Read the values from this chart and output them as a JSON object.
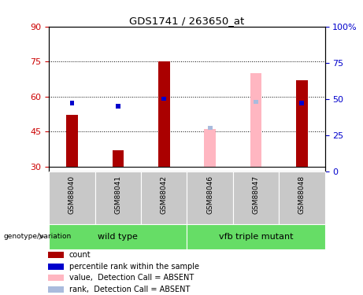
{
  "title": "GDS1741 / 263650_at",
  "samples": [
    "GSM88040",
    "GSM88041",
    "GSM88042",
    "GSM88046",
    "GSM88047",
    "GSM88048"
  ],
  "ylim_left": [
    28,
    90
  ],
  "ylim_right": [
    0,
    100
  ],
  "yticks_left": [
    30,
    45,
    60,
    75,
    90
  ],
  "yticks_right": [
    0,
    25,
    50,
    75,
    100
  ],
  "ytick_labels_right": [
    "0",
    "25",
    "50",
    "75",
    "100%"
  ],
  "bar_bottom": 30,
  "bar_data": [
    {
      "sample": "GSM88040",
      "absent": false,
      "value": 52,
      "rank_pct": 47
    },
    {
      "sample": "GSM88041",
      "absent": false,
      "value": 37,
      "rank_pct": 45
    },
    {
      "sample": "GSM88042",
      "absent": false,
      "value": 75,
      "rank_pct": 50
    },
    {
      "sample": "GSM88046",
      "absent": true,
      "value": 46,
      "rank_pct": 30
    },
    {
      "sample": "GSM88047",
      "absent": true,
      "value": 70,
      "rank_pct": 48
    },
    {
      "sample": "GSM88048",
      "absent": false,
      "value": 67,
      "rank_pct": 47
    }
  ],
  "colors": {
    "bar_present": "#AA0000",
    "bar_absent": "#FFB6C1",
    "rank_present": "#0000CC",
    "rank_absent": "#AABBDD",
    "left_axis": "#CC0000",
    "right_axis": "#0000CC",
    "sample_bg": "#C8C8C8",
    "group_bg": "#66DD66"
  },
  "bar_width": 0.25,
  "rank_bar_width": 0.1,
  "legend_labels": [
    "count",
    "percentile rank within the sample",
    "value,  Detection Call = ABSENT",
    "rank,  Detection Call = ABSENT"
  ],
  "legend_colors": [
    "#AA0000",
    "#0000CC",
    "#FFB6C1",
    "#AABBDD"
  ]
}
